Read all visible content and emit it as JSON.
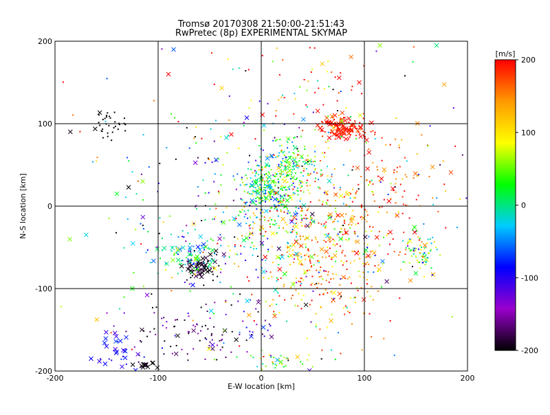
{
  "chart_data": {
    "type": "scatter",
    "title": "Tromsø 20170308 21:50:00-21:51:43",
    "subtitle": "RwPretec (8p) EXPERIMENTAL SKYMAP",
    "xlabel": "E-W location [km]",
    "ylabel": "N-S location [km]",
    "xlim": [
      -200,
      200
    ],
    "ylim": [
      -200,
      200
    ],
    "xticks": [
      "-200",
      "-100",
      "0",
      "100",
      "200"
    ],
    "yticks": [
      "-200",
      "-100",
      "0",
      "100",
      "200"
    ],
    "grid": true,
    "marker_styles": [
      "dot",
      "cross"
    ],
    "colorbar": {
      "label": "[m/s]",
      "range": [
        -200,
        200
      ],
      "ticks": [
        "200",
        "100",
        "0",
        "-100",
        "-200"
      ],
      "colormap": [
        "#000000",
        "#9900cc",
        "#0000ff",
        "#00ccff",
        "#00ff00",
        "#ffff00",
        "#ff9900",
        "#ff0000"
      ]
    },
    "clusters": [
      {
        "cx": 10,
        "cy": 20,
        "sx": 15,
        "sy": 20,
        "n": 320,
        "v": 10,
        "vs": 55,
        "xfrac": 0.1
      },
      {
        "cx": 30,
        "cy": 50,
        "sx": 15,
        "sy": 15,
        "n": 120,
        "v": 30,
        "vs": 60,
        "xfrac": 0.1
      },
      {
        "cx": 80,
        "cy": 95,
        "sx": 12,
        "sy": 7,
        "n": 150,
        "v": 190,
        "vs": 12,
        "xfrac": 0.35
      },
      {
        "cx": -60,
        "cy": -75,
        "sx": 10,
        "sy": 8,
        "n": 70,
        "v": -190,
        "vs": 15,
        "xfrac": 0.4
      },
      {
        "cx": -70,
        "cy": -60,
        "sx": 18,
        "sy": 14,
        "n": 80,
        "v": -20,
        "vs": 50,
        "xfrac": 0.25
      },
      {
        "cx": 60,
        "cy": -50,
        "sx": 35,
        "sy": 45,
        "n": 420,
        "v": 150,
        "vs": 60,
        "xfrac": 0.12
      },
      {
        "cx": 155,
        "cy": -55,
        "sx": 8,
        "sy": 12,
        "n": 80,
        "v": 40,
        "vs": 70,
        "xfrac": 0.05
      },
      {
        "cx": -60,
        "cy": -150,
        "sx": 40,
        "sy": 20,
        "n": 110,
        "v": -170,
        "vs": 40,
        "xfrac": 0.08
      },
      {
        "cx": -140,
        "cy": -175,
        "sx": 10,
        "sy": 12,
        "n": 30,
        "v": -90,
        "vs": 20,
        "xfrac": 0.5
      },
      {
        "cx": -115,
        "cy": -195,
        "sx": 8,
        "sy": 4,
        "n": 15,
        "v": -200,
        "vs": 10,
        "xfrac": 0.7
      },
      {
        "cx": -150,
        "cy": 100,
        "sx": 10,
        "sy": 8,
        "n": 35,
        "v": -200,
        "vs": 5,
        "xfrac": 0.02
      },
      {
        "cx": 120,
        "cy": 20,
        "sx": 30,
        "sy": 40,
        "n": 110,
        "v": 170,
        "vs": 40,
        "xfrac": 0.08
      },
      {
        "cx": -10,
        "cy": -20,
        "sx": 60,
        "sy": 60,
        "n": 280,
        "v": -30,
        "vs": 110,
        "xfrac": 0.1
      },
      {
        "cx": 0,
        "cy": 0,
        "sx": 120,
        "sy": 120,
        "n": 220,
        "v": 0,
        "vs": 130,
        "xfrac": 0.08
      },
      {
        "cx": 40,
        "cy": 140,
        "sx": 50,
        "sy": 40,
        "n": 70,
        "v": 120,
        "vs": 90,
        "xfrac": 0.2
      },
      {
        "cx": 20,
        "cy": -190,
        "sx": 25,
        "sy": 8,
        "n": 40,
        "v": 40,
        "vs": 50,
        "xfrac": 0.15
      }
    ],
    "points": [
      {
        "x": -55,
        "y": -75,
        "v": -200,
        "m": "cross"
      },
      {
        "x": -50,
        "y": -78,
        "v": -200,
        "m": "cross"
      },
      {
        "x": -62,
        "y": -72,
        "v": -200,
        "m": "cross"
      },
      {
        "x": 75,
        "y": 100,
        "v": 200,
        "m": "cross"
      },
      {
        "x": 82,
        "y": 92,
        "v": 200,
        "m": "cross"
      },
      {
        "x": 88,
        "y": 98,
        "v": 190,
        "m": "cross"
      },
      {
        "x": 70,
        "y": 95,
        "v": 120,
        "m": "cross"
      },
      {
        "x": 78,
        "y": 103,
        "v": 60,
        "m": "cross"
      },
      {
        "x": 5,
        "y": 10,
        "v": 20,
        "m": "cross"
      },
      {
        "x": -8,
        "y": 5,
        "v": 0,
        "m": "cross"
      },
      {
        "x": 160,
        "y": -65,
        "v": 60,
        "m": "cross"
      },
      {
        "x": -125,
        "y": -100,
        "v": 30,
        "m": "cross"
      },
      {
        "x": -165,
        "y": -185,
        "v": -90,
        "m": "cross"
      },
      {
        "x": -150,
        "y": -170,
        "v": -100,
        "m": "cross"
      },
      {
        "x": -110,
        "y": -195,
        "v": -200,
        "m": "cross"
      },
      {
        "x": -105,
        "y": -190,
        "v": -200,
        "m": "cross"
      },
      {
        "x": -140,
        "y": 15,
        "v": 20,
        "m": "cross"
      },
      {
        "x": -115,
        "y": 30,
        "v": 60,
        "m": "cross"
      },
      {
        "x": -90,
        "y": 160,
        "v": 200,
        "m": "cross"
      },
      {
        "x": 115,
        "y": 195,
        "v": 60,
        "m": "cross"
      },
      {
        "x": 170,
        "y": 195,
        "v": 0,
        "m": "cross"
      },
      {
        "x": -85,
        "y": 190,
        "v": -60,
        "m": "cross"
      },
      {
        "x": 95,
        "y": 150,
        "v": 200,
        "m": "cross"
      }
    ]
  }
}
